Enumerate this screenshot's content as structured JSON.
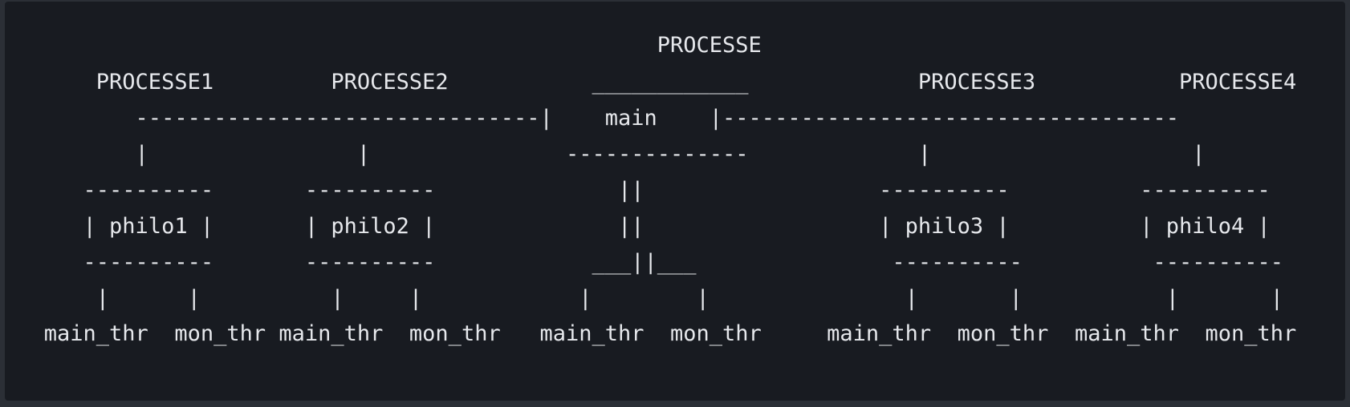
{
  "diagram": {
    "lines": [
      "                                                  PROCESSE",
      "       PROCESSE1         PROCESSE2           ____________             PROCESSE3           PROCESSE4",
      "          -------------------------------|    main    |-----------------------------------",
      "          |                |               --------------             |                    |",
      "      ----------       ----------              ||                  ----------          ----------",
      "      | philo1 |       | philo2 |              ||                  | philo3 |          | philo4 |",
      "      ----------       ----------            ___||___               ----------          ----------",
      "       |      |          |     |            |        |               |       |           |       |",
      "   main_thr  mon_thr main_thr  mon_thr   main_thr  mon_thr     main_thr  mon_thr  main_thr  mon_thr"
    ]
  }
}
